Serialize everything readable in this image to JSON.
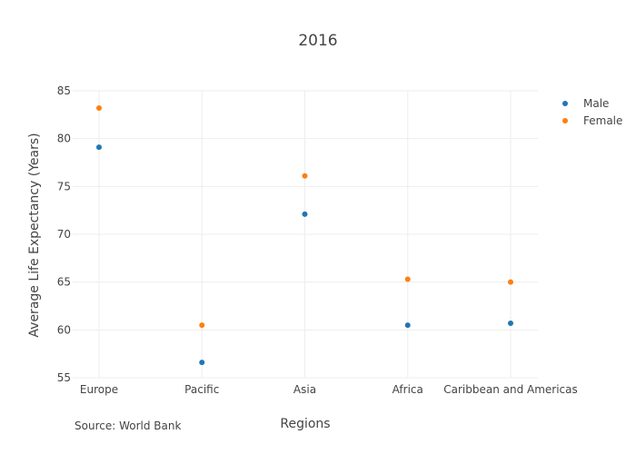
{
  "chart_data": {
    "type": "scatter",
    "title": "2016",
    "xlabel": "Regions",
    "ylabel": "Average Life Expectancy (Years)",
    "categories": [
      "Europe",
      "Pacific",
      "Asia",
      "Africa",
      "Caribbean and Americas"
    ],
    "ylim": [
      55,
      85
    ],
    "yticks": [
      55,
      60,
      65,
      70,
      75,
      80,
      85
    ],
    "grid": true,
    "legend_position": "top-right",
    "series": [
      {
        "name": "Male",
        "color": "#1f77b4",
        "values": [
          79.1,
          56.6,
          72.1,
          60.5,
          60.7
        ]
      },
      {
        "name": "Female",
        "color": "#ff7f0e",
        "values": [
          83.2,
          60.5,
          76.1,
          65.3,
          65.0
        ]
      }
    ],
    "annotation": "Source: World Bank"
  }
}
